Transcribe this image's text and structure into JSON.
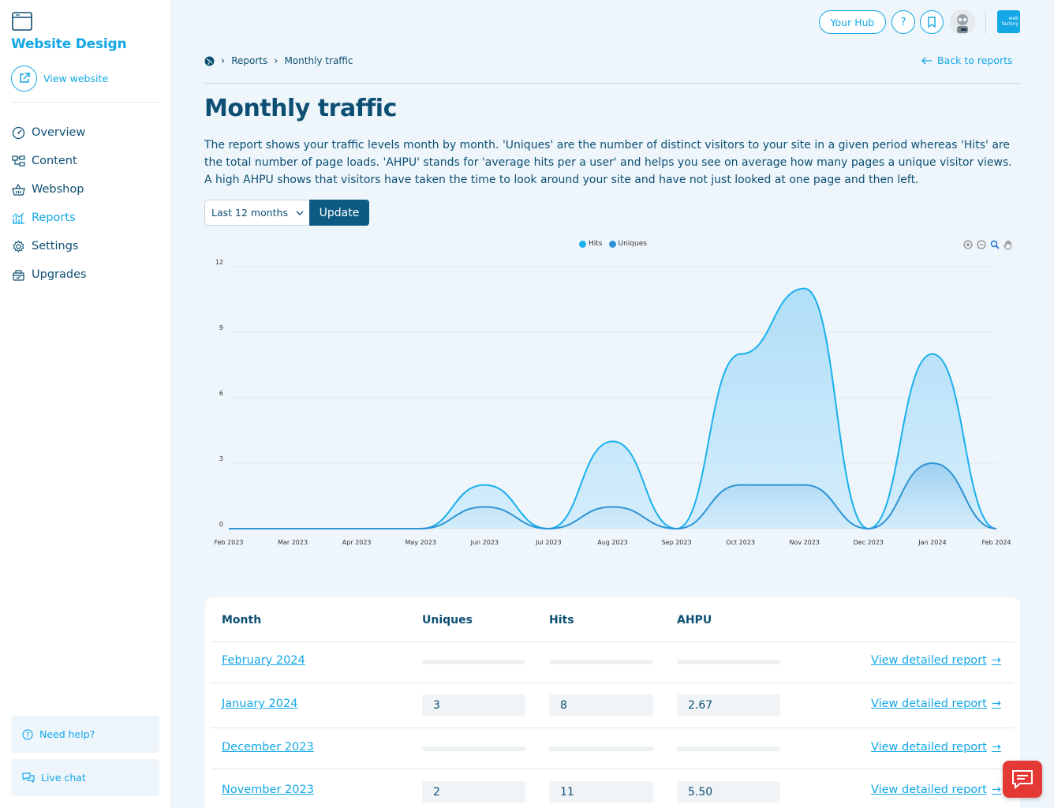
{
  "sidebar": {
    "site_title": "Website Design",
    "view_website": "View website",
    "nav": [
      {
        "label": "Overview",
        "icon": "gauge-icon"
      },
      {
        "label": "Content",
        "icon": "sitemap-icon"
      },
      {
        "label": "Webshop",
        "icon": "basket-icon"
      },
      {
        "label": "Reports",
        "icon": "chart-icon",
        "active": true
      },
      {
        "label": "Settings",
        "icon": "gear-icon"
      },
      {
        "label": "Upgrades",
        "icon": "gift-icon"
      }
    ],
    "need_help": "Need help?",
    "live_chat": "Live chat"
  },
  "topbar": {
    "hub_label": "Your Hub",
    "help_label": "?",
    "logo_text": "web factory"
  },
  "breadcrumb": {
    "items": [
      "Reports",
      "Monthly traffic"
    ],
    "back_label": "Back to reports"
  },
  "page": {
    "title": "Monthly traffic",
    "description": "The report shows your traffic levels month by month. 'Uniques' are the number of distinct visitors to your site in a given period whereas 'Hits' are the total number of page loads. 'AHPU' stands for 'average hits per a user' and helps you see on average how many pages a unique visitor views. A high AHPU shows that visitors have taken the time to look around your site and have not just looked at one page and then left."
  },
  "filter": {
    "period": "Last 12 months",
    "update_label": "Update"
  },
  "chart_data": {
    "type": "area",
    "categories": [
      "Feb 2023",
      "Mar 2023",
      "Apr 2023",
      "May 2023",
      "Jun 2023",
      "Jul 2023",
      "Aug 2023",
      "Sep 2023",
      "Oct 2023",
      "Nov 2023",
      "Dec 2023",
      "Jan 2024",
      "Feb 2024"
    ],
    "series": [
      {
        "name": "Hits",
        "color": "#1ab0ee",
        "values": [
          0,
          0,
          0,
          0,
          2,
          0,
          4,
          0,
          8,
          11,
          0,
          8,
          0
        ]
      },
      {
        "name": "Uniques",
        "color": "#2e93d4",
        "values": [
          0,
          0,
          0,
          0,
          1,
          0,
          1,
          0,
          2,
          2,
          0,
          3,
          0
        ]
      }
    ],
    "yticks": [
      0,
      3,
      6,
      9,
      12
    ],
    "ylim": [
      0,
      12
    ],
    "legend": "top-center",
    "grid": true
  },
  "table": {
    "headers": [
      "Month",
      "Uniques",
      "Hits",
      "AHPU"
    ],
    "detail_label": "View detailed report",
    "rows": [
      {
        "month": "February 2024",
        "uniques": null,
        "hits": null,
        "ahpu": null
      },
      {
        "month": "January 2024",
        "uniques": "3",
        "hits": "8",
        "ahpu": "2.67"
      },
      {
        "month": "December 2023",
        "uniques": null,
        "hits": null,
        "ahpu": null
      },
      {
        "month": "November 2023",
        "uniques": "2",
        "hits": "11",
        "ahpu": "5.50"
      }
    ]
  },
  "colors": {
    "accent": "#13a7e6",
    "primary": "#0d4f73",
    "button": "#0d5b82",
    "chat": "#e53935"
  }
}
